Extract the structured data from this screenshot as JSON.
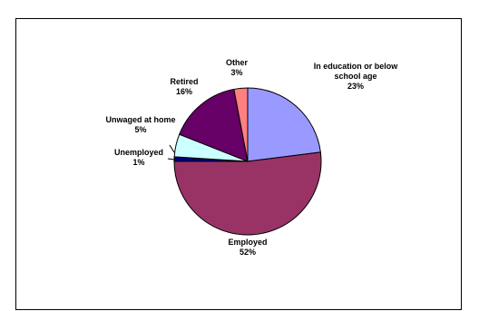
{
  "chart_data": {
    "type": "pie",
    "title": "",
    "slices": [
      {
        "name": "In education or below school age",
        "label_lines": [
          "In education or below",
          "school age"
        ],
        "pct_label": "23%",
        "value": 23,
        "color": "#9999ff"
      },
      {
        "name": "Employed",
        "label_lines": [
          "Employed"
        ],
        "pct_label": "52%",
        "value": 52,
        "color": "#993366"
      },
      {
        "name": "Unemployed",
        "label_lines": [
          "Unemployed"
        ],
        "pct_label": "1%",
        "value": 1,
        "color": "#000080"
      },
      {
        "name": "Unwaged at home",
        "label_lines": [
          "Unwaged at home"
        ],
        "pct_label": "5%",
        "value": 5,
        "color": "#ccffff"
      },
      {
        "name": "Retired",
        "label_lines": [
          "Retired"
        ],
        "pct_label": "16%",
        "value": 16,
        "color": "#660066"
      },
      {
        "name": "Other",
        "label_lines": [
          "Other"
        ],
        "pct_label": "3%",
        "value": 3,
        "color": "#ff8080"
      }
    ],
    "start_angle_deg": 0,
    "direction": "clockwise",
    "legend": "none",
    "data_labels": "outside"
  }
}
